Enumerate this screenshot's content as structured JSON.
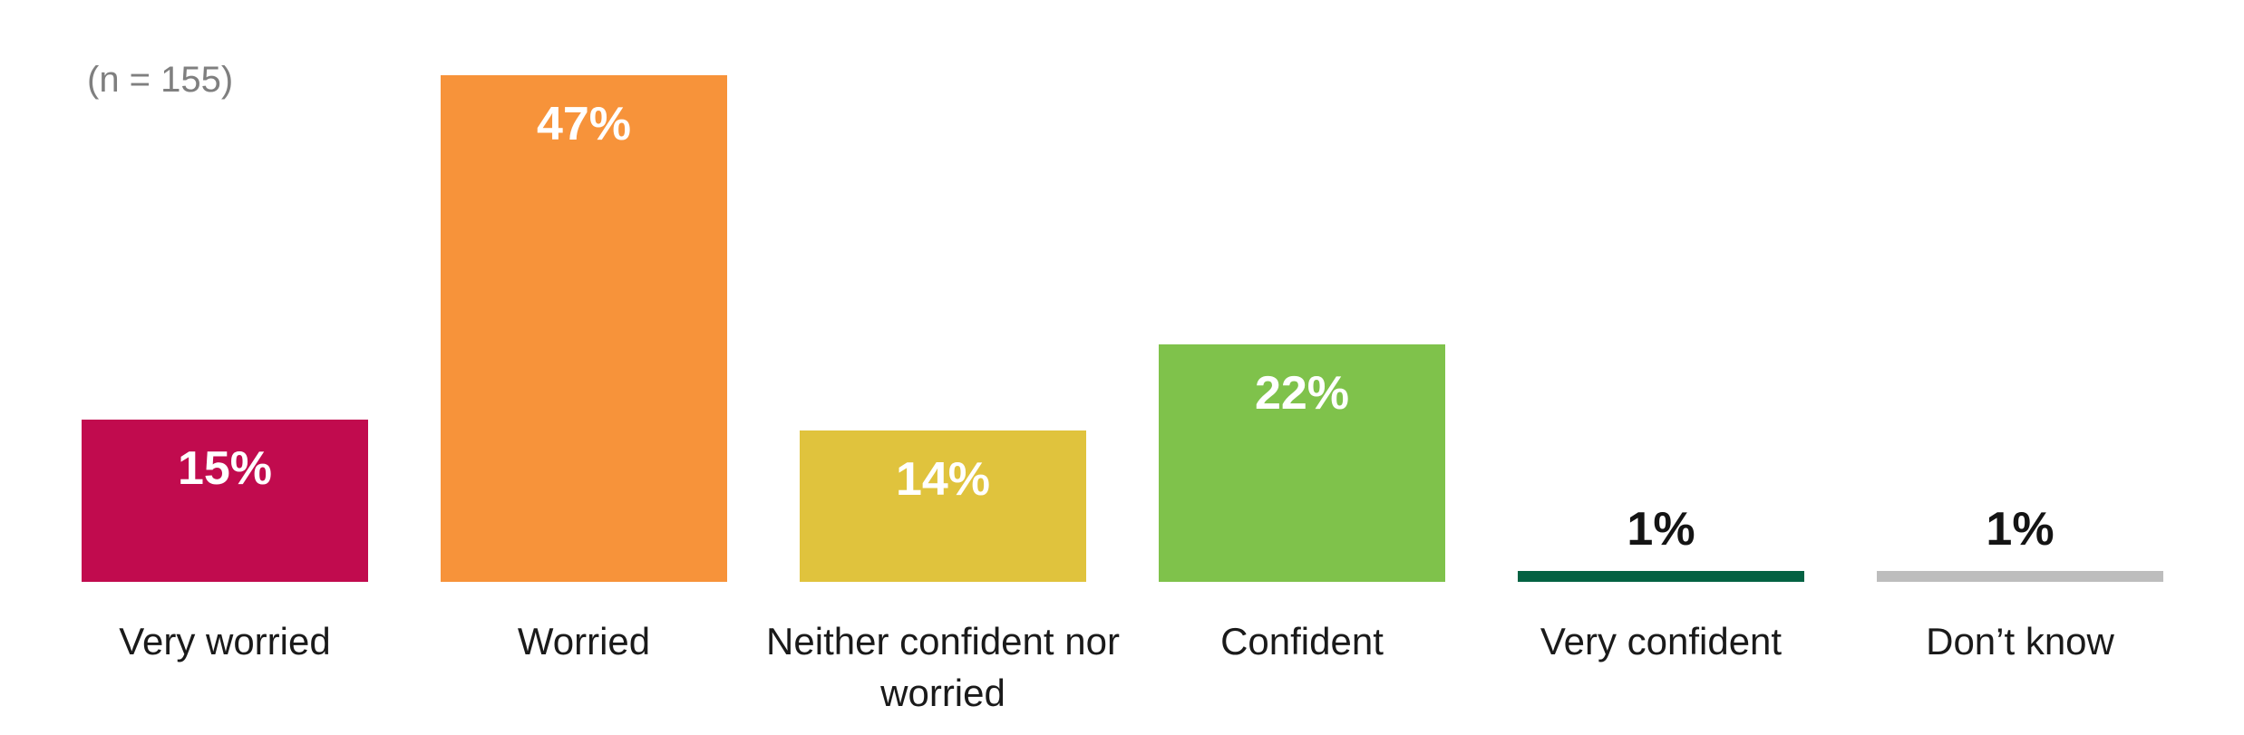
{
  "annotation": {
    "sample_size": "(n = 155)"
  },
  "chart_data": {
    "type": "bar",
    "title": "",
    "xlabel": "",
    "ylabel": "",
    "categories": [
      "Very worried",
      "Worried",
      "Neither confident nor worried",
      "Confident",
      "Very confident",
      "Don’t know"
    ],
    "values": [
      15,
      47,
      14,
      22,
      1,
      1
    ],
    "value_labels": [
      "15%",
      "47%",
      "14%",
      "22%",
      "1%",
      "1%"
    ],
    "bar_colors": [
      "#C10B4E",
      "#F7933A",
      "#E0C33D",
      "#7FC24B",
      "#046243",
      "#BDBDBD"
    ],
    "value_label_inside_color": "#FFFFFF",
    "value_label_outside_color": "#141414",
    "category_label_color": "#1A1A1A",
    "annotation": "(n = 155)",
    "annotation_color": "#7F7F7F",
    "ylim": [
      0,
      50
    ],
    "grid": false,
    "legend": false,
    "axes_visible": false,
    "value_label_position": "inside-end, above bar when bar is too short"
  }
}
